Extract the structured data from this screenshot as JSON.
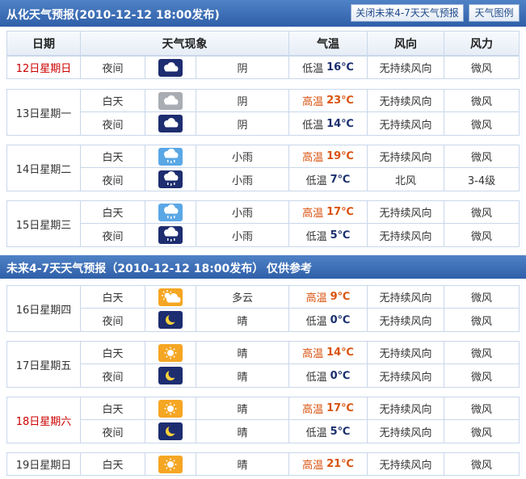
{
  "header": {
    "title": "从化天气预报(2010-12-12  18:00发布)",
    "buttons": [
      "关闭未来4-7天天气预报",
      "天气图例"
    ]
  },
  "table": {
    "columns": [
      "日期",
      "天气现象",
      "气温",
      "风向",
      "风力"
    ],
    "days": [
      {
        "date": "12日星期日",
        "color": "#cc0000",
        "periods": [
          {
            "period": "夜间",
            "icon": "night-overcast",
            "weather": "阴",
            "temp": {
              "label": "低温",
              "value": "16℃",
              "color": "#1a2f6e"
            },
            "wind_dir": "无持续风向",
            "wind_force": "微风"
          }
        ]
      },
      {
        "date": "13日星期一",
        "color": "#333333",
        "periods": [
          {
            "period": "白天",
            "icon": "day-overcast",
            "weather": "阴",
            "temp": {
              "label": "高温",
              "value": "23℃",
              "color": "#d9530f"
            },
            "wind_dir": "无持续风向",
            "wind_force": "微风"
          },
          {
            "period": "夜间",
            "icon": "night-overcast",
            "weather": "阴",
            "temp": {
              "label": "低温",
              "value": "14℃",
              "color": "#1a2f6e"
            },
            "wind_dir": "无持续风向",
            "wind_force": "微风"
          }
        ]
      },
      {
        "date": "14日星期二",
        "color": "#333333",
        "periods": [
          {
            "period": "白天",
            "icon": "day-rain",
            "weather": "小雨",
            "temp": {
              "label": "高温",
              "value": "19℃",
              "color": "#d9530f"
            },
            "wind_dir": "无持续风向",
            "wind_force": "微风"
          },
          {
            "period": "夜间",
            "icon": "night-rain",
            "weather": "小雨",
            "temp": {
              "label": "低温",
              "value": "7℃",
              "color": "#1a2f6e"
            },
            "wind_dir": "北风",
            "wind_force": "3-4级"
          }
        ]
      },
      {
        "date": "15日星期三",
        "color": "#333333",
        "periods": [
          {
            "period": "白天",
            "icon": "day-rain",
            "weather": "小雨",
            "temp": {
              "label": "高温",
              "value": "17℃",
              "color": "#d9530f"
            },
            "wind_dir": "无持续风向",
            "wind_force": "微风"
          },
          {
            "period": "夜间",
            "icon": "night-rain",
            "weather": "小雨",
            "temp": {
              "label": "低温",
              "value": "5℃",
              "color": "#1a2f6e"
            },
            "wind_dir": "无持续风向",
            "wind_force": "微风"
          }
        ]
      }
    ]
  },
  "extended": {
    "title": "未来4-7天天气预报（2010-12-12 18:00发布）",
    "note": "仅供参考",
    "days": [
      {
        "date": "16日星期四",
        "color": "#333333",
        "periods": [
          {
            "period": "白天",
            "icon": "day-cloudy",
            "weather": "多云",
            "temp": {
              "label": "高温",
              "value": "9℃",
              "color": "#d9530f"
            },
            "wind_dir": "无持续风向",
            "wind_force": "微风"
          },
          {
            "period": "夜间",
            "icon": "night-clear",
            "weather": "晴",
            "temp": {
              "label": "低温",
              "value": "0℃",
              "color": "#1a2f6e"
            },
            "wind_dir": "无持续风向",
            "wind_force": "微风"
          }
        ]
      },
      {
        "date": "17日星期五",
        "color": "#333333",
        "periods": [
          {
            "period": "白天",
            "icon": "day-clear",
            "weather": "晴",
            "temp": {
              "label": "高温",
              "value": "14℃",
              "color": "#d9530f"
            },
            "wind_dir": "无持续风向",
            "wind_force": "微风"
          },
          {
            "period": "夜间",
            "icon": "night-clear",
            "weather": "晴",
            "temp": {
              "label": "低温",
              "value": "0℃",
              "color": "#1a2f6e"
            },
            "wind_dir": "无持续风向",
            "wind_force": "微风"
          }
        ]
      },
      {
        "date": "18日星期六",
        "color": "#cc0000",
        "periods": [
          {
            "period": "白天",
            "icon": "day-clear",
            "weather": "晴",
            "temp": {
              "label": "高温",
              "value": "17℃",
              "color": "#d9530f"
            },
            "wind_dir": "无持续风向",
            "wind_force": "微风"
          },
          {
            "period": "夜间",
            "icon": "night-clear",
            "weather": "晴",
            "temp": {
              "label": "低温",
              "value": "5℃",
              "color": "#1a2f6e"
            },
            "wind_dir": "无持续风向",
            "wind_force": "微风"
          }
        ]
      },
      {
        "date": "19日星期日",
        "color": "#333333",
        "periods": [
          {
            "period": "白天",
            "icon": "day-clear",
            "weather": "晴",
            "temp": {
              "label": "高温",
              "value": "21℃",
              "color": "#d9530f"
            },
            "wind_dir": "无持续风向",
            "wind_force": "微风"
          }
        ]
      }
    ]
  }
}
